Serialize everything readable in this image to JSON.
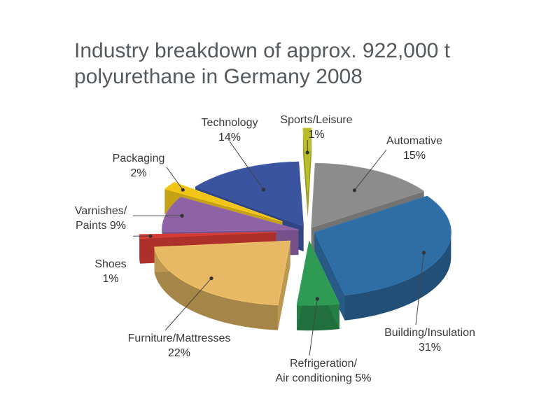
{
  "chart_data": {
    "type": "pie",
    "title": [
      "Industry breakdown of approx. 922,000 t",
      "polyurethane in Germany 2008"
    ],
    "slices": [
      {
        "name": "Sports/Leisure",
        "value": 1,
        "label": "1%",
        "color": "#b9bd2c",
        "label_lines": [
          "Sports/Leisure"
        ]
      },
      {
        "name": "Automative",
        "value": 15,
        "label": "15%",
        "color": "#8c8c8c",
        "label_lines": [
          "Automative"
        ]
      },
      {
        "name": "Building/Insulation",
        "value": 31,
        "label": "31%",
        "color": "#2f6ea5",
        "label_lines": [
          "Building/Insulation"
        ]
      },
      {
        "name": "Refrigeration/Air conditioning",
        "value": 5,
        "label": "5%",
        "color": "#2e9a53",
        "label_lines": [
          "Refrigeration/",
          "Air conditioning"
        ]
      },
      {
        "name": "Furniture/Mattresses",
        "value": 22,
        "label": "22%",
        "color": "#e7b965",
        "label_lines": [
          "Furniture/Mattresses"
        ]
      },
      {
        "name": "Shoes",
        "value": 1,
        "label": "1%",
        "color": "#d33b33",
        "label_lines": [
          "Shoes"
        ]
      },
      {
        "name": "Varnishes/Paints",
        "value": 9,
        "label": "9%",
        "color": "#8e63a6",
        "label_lines": [
          "Varnishes/",
          "Paints"
        ]
      },
      {
        "name": "Packaging",
        "value": 2,
        "label": "2%",
        "color": "#f0c419",
        "label_lines": [
          "Packaging"
        ]
      },
      {
        "name": "Technology",
        "value": 14,
        "label": "14%",
        "color": "#3b54a0",
        "label_lines": [
          "Technology"
        ]
      }
    ]
  }
}
